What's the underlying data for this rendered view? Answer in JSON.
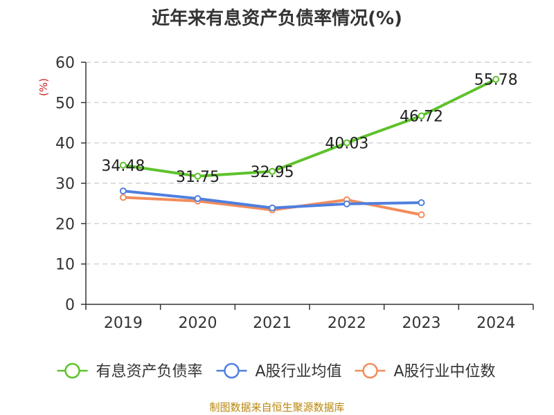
{
  "chart_data": {
    "type": "line",
    "title": "近年来有息资产负债率情况(%)",
    "ylabel": "(%)",
    "xlabel": "",
    "categories": [
      "2019",
      "2020",
      "2021",
      "2022",
      "2023",
      "2024"
    ],
    "ylim": [
      0,
      60
    ],
    "yticks": [
      0,
      10,
      20,
      30,
      40,
      50,
      60
    ],
    "grid": true,
    "legend_position": "bottom",
    "series": [
      {
        "name": "有息资产负债率",
        "color": "#5ec22c",
        "values": [
          34.48,
          31.75,
          32.95,
          40.03,
          46.72,
          55.78
        ],
        "show_labels": true
      },
      {
        "name": "A股行业均值",
        "color": "#4f7fde",
        "values": [
          28.1,
          26.2,
          23.9,
          24.9,
          25.2,
          null
        ],
        "show_labels": false
      },
      {
        "name": "A股行业中位数",
        "color": "#f28c5a",
        "values": [
          26.5,
          25.6,
          23.4,
          25.9,
          22.2,
          null
        ],
        "show_labels": false
      }
    ]
  },
  "source": "制图数据来自恒生聚源数据库"
}
